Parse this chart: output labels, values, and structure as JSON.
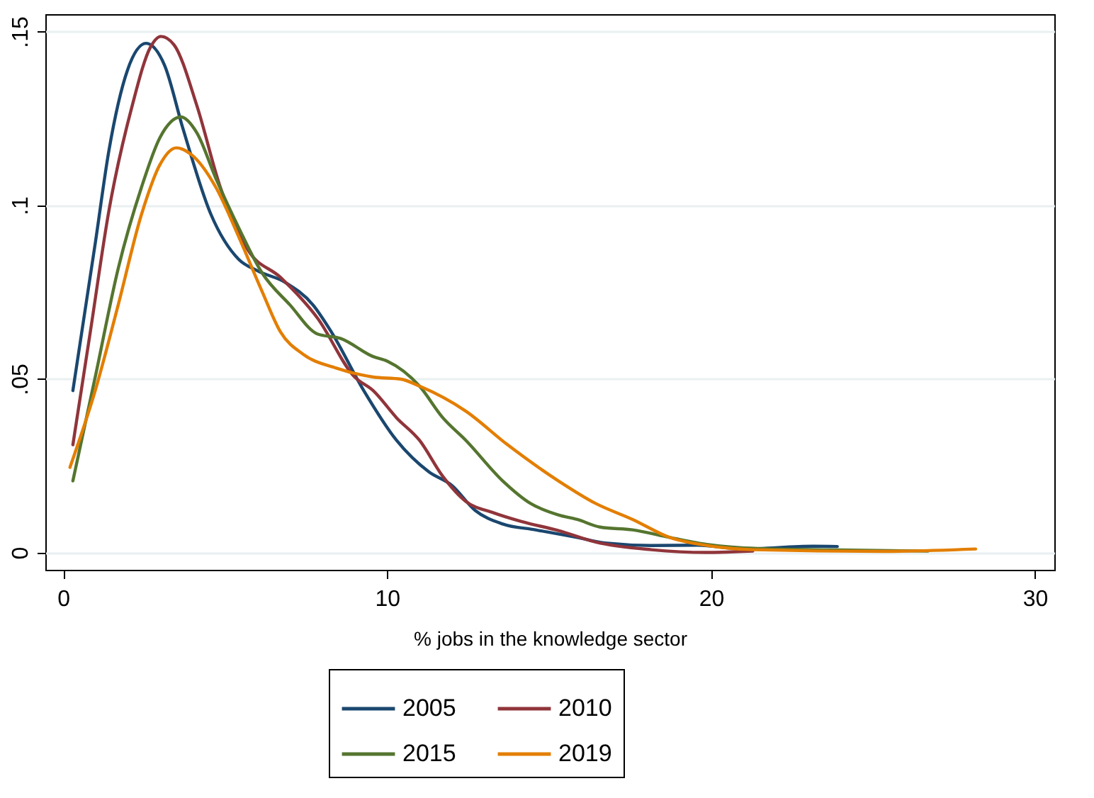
{
  "chart_data": {
    "type": "line",
    "xlabel": "% jobs in the knowledge sector",
    "xlim": [
      -0.55,
      30.6
    ],
    "xticks": [
      0,
      10,
      20,
      30
    ],
    "ylim": [
      -0.005,
      0.155
    ],
    "yticks": [
      0,
      {
        "value": 0.05,
        "label": ".05"
      },
      {
        "value": 0.1,
        "label": ".1"
      },
      {
        "value": 0.15,
        "label": ".15"
      }
    ],
    "grid": "y",
    "legend": "bottom",
    "line_style": "solid",
    "marker": "none",
    "series": [
      {
        "name": "2005",
        "color": "#1a476f",
        "x": [
          0.3,
          1.0,
          1.41,
          1.99,
          2.56,
          3.13,
          3.7,
          4.56,
          5.42,
          6.0,
          6.85,
          7.71,
          8.28,
          9.28,
          10.29,
          11.29,
          12.0,
          12.72,
          13.57,
          14.58,
          15.87,
          16.73,
          18.15,
          19.58,
          21.0,
          23.16,
          23.9
        ],
        "values": [
          0.0466,
          0.0896,
          0.1156,
          0.139,
          0.1466,
          0.1403,
          0.122,
          0.0974,
          0.0844,
          0.0811,
          0.0778,
          0.0713,
          0.0635,
          0.0466,
          0.0323,
          0.0232,
          0.0193,
          0.0121,
          0.0082,
          0.0065,
          0.0043,
          0.0027,
          0.002,
          0.0021,
          0.001,
          0.0018,
          0.0017
        ]
      },
      {
        "name": "2010",
        "color": "#90353b",
        "x": [
          0.3,
          0.84,
          1.42,
          2.13,
          2.7,
          3.02,
          3.42,
          4.13,
          4.85,
          5.71,
          6.71,
          7.85,
          9.0,
          9.57,
          10.29,
          11.0,
          11.72,
          12.43,
          13.29,
          14.15,
          15.29,
          16.44,
          18.15,
          19.87,
          21.29
        ],
        "values": [
          0.031,
          0.0636,
          0.0988,
          0.1286,
          0.1456,
          0.1486,
          0.1462,
          0.1286,
          0.1052,
          0.087,
          0.0792,
          0.0675,
          0.0505,
          0.0466,
          0.0388,
          0.0323,
          0.0219,
          0.0147,
          0.0114,
          0.0089,
          0.0063,
          0.003,
          0.0008,
          0.0,
          0.0004
        ]
      },
      {
        "name": "2015",
        "color": "#55752f",
        "x": [
          0.3,
          0.99,
          1.7,
          2.42,
          2.99,
          3.63,
          4.13,
          4.71,
          5.42,
          6.14,
          7.0,
          7.85,
          8.57,
          9.57,
          10.0,
          11.0,
          11.72,
          12.43,
          13.57,
          14.43,
          15.29,
          15.87,
          16.58,
          17.58,
          18.73,
          19.87,
          21.02,
          23.9,
          26.7
        ],
        "values": [
          0.0206,
          0.0505,
          0.0818,
          0.1052,
          0.1195,
          0.1254,
          0.1208,
          0.1078,
          0.0935,
          0.0805,
          0.0713,
          0.0629,
          0.0616,
          0.0564,
          0.0551,
          0.0479,
          0.0388,
          0.0323,
          0.0206,
          0.0141,
          0.0108,
          0.0095,
          0.0073,
          0.0065,
          0.0043,
          0.0023,
          0.0013,
          0.0007,
          0.0004
        ]
      },
      {
        "name": "2019",
        "color": "#e37e00",
        "x": [
          0.21,
          0.99,
          1.7,
          2.42,
          2.99,
          3.49,
          3.99,
          4.71,
          5.42,
          6.14,
          6.71,
          7.42,
          8.43,
          9.57,
          10.43,
          11.0,
          12.43,
          13.72,
          15.29,
          16.44,
          17.58,
          18.73,
          19.87,
          21.3,
          25.3,
          28.17
        ],
        "values": [
          0.0245,
          0.0466,
          0.0713,
          0.0974,
          0.1117,
          0.1165,
          0.1143,
          0.1052,
          0.0909,
          0.0752,
          0.0635,
          0.057,
          0.0531,
          0.0505,
          0.0499,
          0.0479,
          0.0407,
          0.031,
          0.0206,
          0.0141,
          0.0095,
          0.0043,
          0.002,
          0.0008,
          0.0003,
          0.001
        ]
      }
    ]
  }
}
